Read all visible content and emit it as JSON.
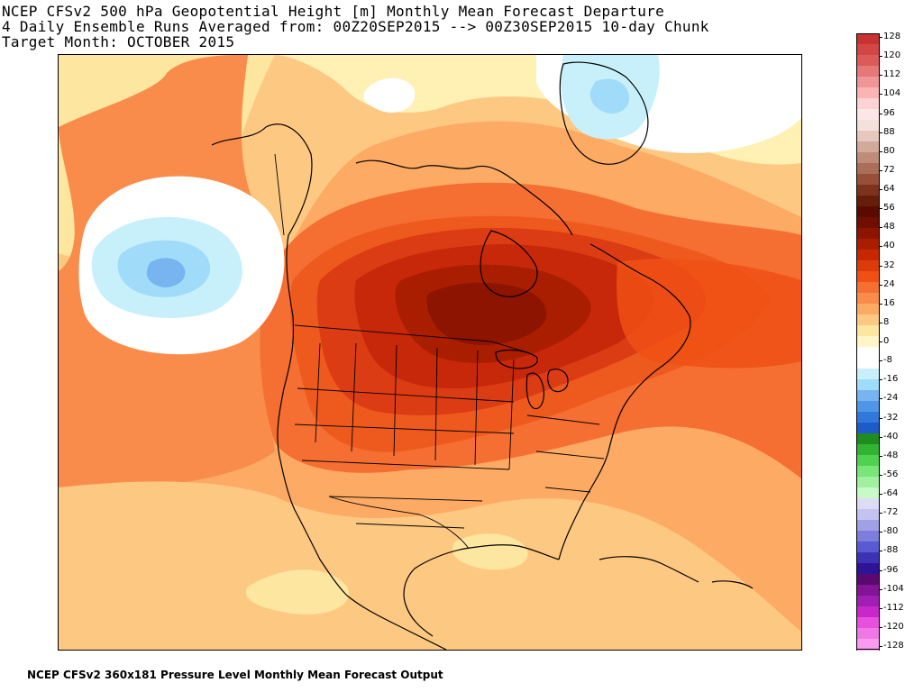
{
  "title": {
    "line1": "NCEP CFSv2 500 hPa Geopotential Height [m] Monthly Mean Forecast Departure",
    "line2": "4 Daily Ensemble Runs Averaged from: 00Z20SEP2015 --> 00Z30SEP2015 10-day Chunk",
    "line3": "Target Month: OCTOBER 2015"
  },
  "footer": "NCEP CFSv2 360x181 Pressure Level Monthly Mean Forecast Output",
  "colorbar": {
    "labels": [
      "128",
      "120",
      "112",
      "104",
      "96",
      "88",
      "80",
      "72",
      "64",
      "56",
      "48",
      "40",
      "32",
      "24",
      "16",
      "8",
      "0",
      "-8",
      "-16",
      "-24",
      "-32",
      "-40",
      "-48",
      "-56",
      "-64",
      "-72",
      "-80",
      "-88",
      "-96",
      "-104",
      "-112",
      "-120",
      "-128"
    ],
    "colors": [
      "#c83232",
      "#d24646",
      "#dc5a5a",
      "#e67878",
      "#f09696",
      "#fab4b4",
      "#fcd2d2",
      "#fde6e6",
      "#f5e1dc",
      "#e6c8be",
      "#d2aa9b",
      "#be8c78",
      "#aa6e5a",
      "#965037",
      "#7d321e",
      "#641e0a",
      "#5a0a00",
      "#6e0f00",
      "#8c1400",
      "#aa1e00",
      "#c82800",
      "#dc3c0a",
      "#f05014",
      "#f56e32",
      "#fa8c4b",
      "#fcaa64",
      "#fdc882",
      "#fde6a0",
      "#fff5c8",
      "#ffffff",
      "#ffffff",
      "#c8f0fa",
      "#a0dcfa",
      "#78b4f0",
      "#5096e6",
      "#3278dc",
      "#1e5ac8",
      "#1e8c1e",
      "#32b432",
      "#50d250",
      "#78e678",
      "#a0f0a0",
      "#c8fac8",
      "#dcdcf5",
      "#c3c3f0",
      "#a0a0e6",
      "#7d7ddc",
      "#5a5ad2",
      "#3c32b4",
      "#2d1496",
      "#5a0a6e",
      "#821496",
      "#a01eb4",
      "#c828c8",
      "#e650dc",
      "#f078e6",
      "#fa9bf0"
    ]
  },
  "map": {
    "contour_colors": {
      "c0": "#ffffff",
      "c8": "#fff0b4",
      "c16": "#fdc882",
      "c24": "#fcaa64",
      "c32": "#f98c4b",
      "c40": "#ee6428",
      "c48": "#dc3c14",
      "c56": "#c8280a",
      "c64": "#aa1e00",
      "c72": "#8c1400",
      "n8": "#c8f0fa",
      "n16": "#a0dcfa",
      "n24": "#78b4f0"
    }
  }
}
